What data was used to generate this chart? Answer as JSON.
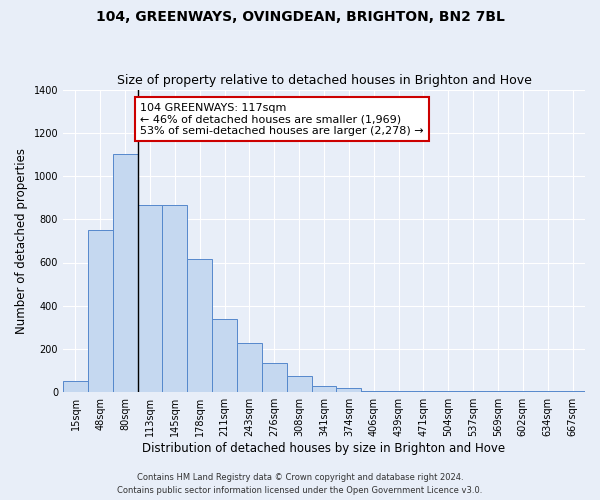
{
  "title1": "104, GREENWAYS, OVINGDEAN, BRIGHTON, BN2 7BL",
  "title2": "Size of property relative to detached houses in Brighton and Hove",
  "xlabel": "Distribution of detached houses by size in Brighton and Hove",
  "ylabel": "Number of detached properties",
  "categories": [
    "15sqm",
    "48sqm",
    "80sqm",
    "113sqm",
    "145sqm",
    "178sqm",
    "211sqm",
    "243sqm",
    "276sqm",
    "308sqm",
    "341sqm",
    "374sqm",
    "406sqm",
    "439sqm",
    "471sqm",
    "504sqm",
    "537sqm",
    "569sqm",
    "602sqm",
    "634sqm",
    "667sqm"
  ],
  "bar_heights": [
    50,
    750,
    1100,
    865,
    865,
    615,
    340,
    228,
    135,
    73,
    30,
    18,
    5,
    5,
    5,
    5,
    5,
    5,
    5,
    5,
    5
  ],
  "annotation_text": "104 GREENWAYS: 117sqm\n← 46% of detached houses are smaller (1,969)\n53% of semi-detached houses are larger (2,278) →",
  "vline_x_index": 3,
  "bar_color": "#c5d8f0",
  "bar_edge_color": "#5588cc",
  "annotation_box_color": "#ffffff",
  "annotation_box_edge": "#cc0000",
  "footer1": "Contains HM Land Registry data © Crown copyright and database right 2024.",
  "footer2": "Contains public sector information licensed under the Open Government Licence v3.0.",
  "plot_bg_color": "#e8eef8",
  "fig_bg_color": "#e8eef8",
  "ylim": [
    0,
    1400
  ],
  "title1_fontsize": 10,
  "title2_fontsize": 9,
  "ylabel_fontsize": 8.5,
  "xlabel_fontsize": 8.5,
  "tick_fontsize": 7,
  "annot_fontsize": 8,
  "footer_fontsize": 6
}
